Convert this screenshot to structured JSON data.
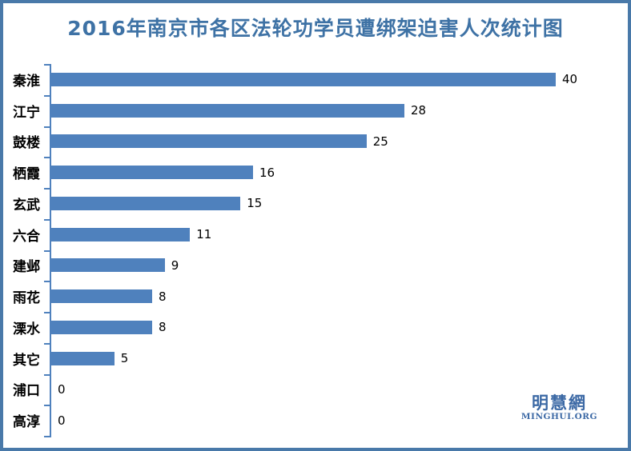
{
  "title": "2016年南京市各区法轮功学员遭绑架迫害人次统计图",
  "logo": {
    "chinese": "明慧網",
    "english": "MINGHUI.ORG"
  },
  "colors": {
    "bar": "#4F81BD",
    "axis": "#4F81BD",
    "border": "#4979A9",
    "title": "#3E72A5",
    "logo": "#3C69A5",
    "value_text": "#000000",
    "category_text": "#000000",
    "background": "#FFFFFF"
  },
  "chart_data": {
    "type": "bar",
    "orientation": "horizontal",
    "title": "2016年南京市各区法轮功学员遭绑架迫害人次统计图",
    "categories": [
      "秦淮",
      "江宁",
      "鼓楼",
      "栖霞",
      "玄武",
      "六合",
      "建邺",
      "雨花",
      "溧水",
      "其它",
      "浦口",
      "高淳"
    ],
    "values": [
      40,
      28,
      25,
      16,
      15,
      11,
      9,
      8,
      8,
      5,
      0,
      0
    ],
    "xlabel": "",
    "ylabel": "",
    "xlim": [
      0,
      45
    ],
    "grid": false,
    "legend": false,
    "value_labels_shown": true,
    "bars_sorted_descending": true
  }
}
